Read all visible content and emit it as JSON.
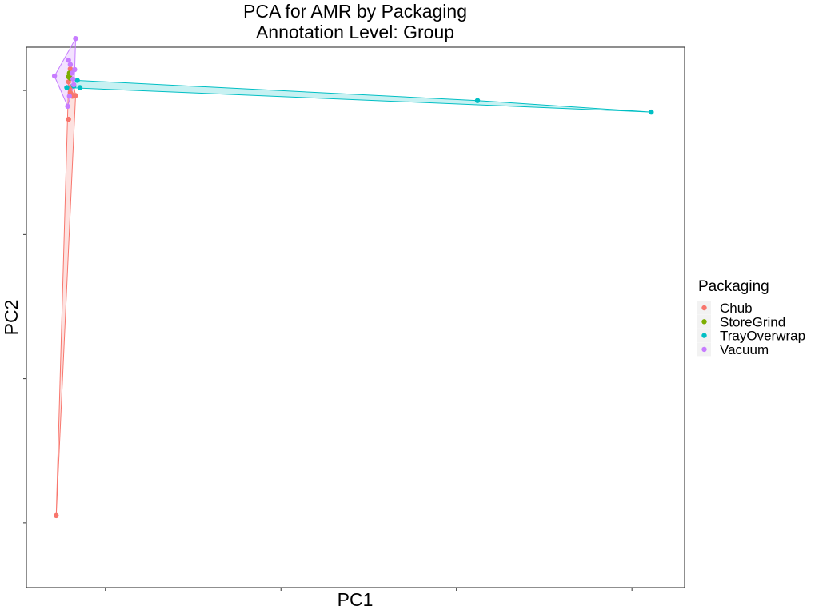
{
  "chart_data": {
    "type": "scatter",
    "title": "PCA for AMR by Packaging",
    "subtitle": "Annotation Level: Group",
    "xlabel": "PC1",
    "ylabel": "PC2",
    "xlim": [
      -0.15,
      3.6
    ],
    "ylim": [
      -0.15,
      3.6
    ],
    "x_ticks": [
      0.3,
      1.3,
      2.3,
      3.3
    ],
    "y_ticks": [
      0.3,
      1.3,
      2.3,
      3.3
    ],
    "tick_labels_shown": false,
    "grid": false,
    "legend_title": "Packaging",
    "legend_position": "right",
    "series": [
      {
        "name": "Chub",
        "color": "#F8766D",
        "hull": true,
        "points": [
          [
            0.02,
            0.35
          ],
          [
            0.102,
            3.43
          ],
          [
            0.112,
            3.26
          ],
          [
            0.105,
            3.275
          ],
          [
            0.13,
            3.265
          ],
          [
            0.098,
            3.32
          ],
          [
            0.1,
            3.285
          ],
          [
            0.09,
            3.1
          ],
          [
            0.1,
            3.45
          ],
          [
            0.09,
            3.36
          ]
        ]
      },
      {
        "name": "StoreGrind",
        "color": "#7CAE00",
        "hull": false,
        "points": [
          [
            0.09,
            3.395
          ],
          [
            0.1,
            3.385
          ],
          [
            0.095,
            3.42
          ]
        ]
      },
      {
        "name": "TrayOverwrap",
        "color": "#00BFC4",
        "hull": true,
        "points": [
          [
            0.155,
            3.32
          ],
          [
            0.14,
            3.37
          ],
          [
            2.42,
            3.23
          ],
          [
            3.41,
            3.15
          ],
          [
            0.08,
            3.32
          ],
          [
            0.12,
            3.33
          ]
        ]
      },
      {
        "name": "Vacuum",
        "color": "#C77CFF",
        "hull": true,
        "points": [
          [
            0.01,
            3.4
          ],
          [
            0.13,
            3.66
          ],
          [
            0.09,
            3.51
          ],
          [
            0.1,
            3.48
          ],
          [
            0.125,
            3.445
          ],
          [
            0.085,
            3.19
          ],
          [
            0.11,
            3.42
          ],
          [
            0.115,
            3.38
          ],
          [
            0.12,
            3.34
          ],
          [
            0.095,
            3.26
          ]
        ]
      }
    ]
  }
}
